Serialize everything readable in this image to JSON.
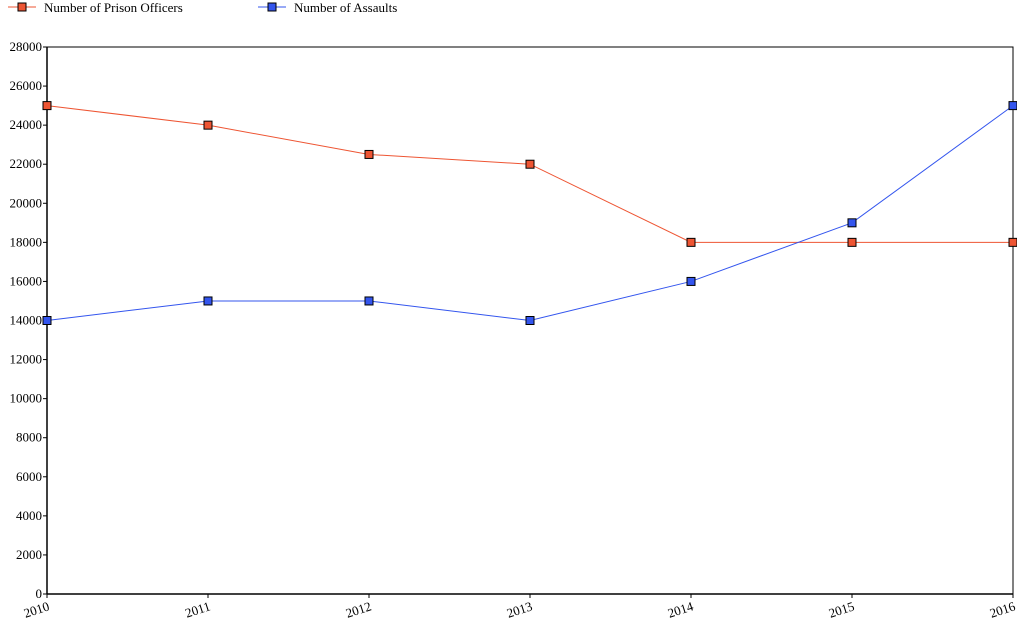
{
  "legend": {
    "items": [
      {
        "label": "Number of Prison Officers",
        "color": "#ee5533",
        "marker": "square"
      },
      {
        "label": "Number of Assaults",
        "color": "#3355ee",
        "marker": "square"
      }
    ]
  },
  "chart_data": {
    "type": "line",
    "title": "",
    "xlabel": "",
    "ylabel": "",
    "x": [
      "2010",
      "2011",
      "2012",
      "2013",
      "2014",
      "2015",
      "2016"
    ],
    "series": [
      {
        "name": "Number of Prison Officers",
        "color": "#ee5533",
        "values": [
          25000,
          24000,
          22500,
          22000,
          18000,
          18000,
          18000
        ]
      },
      {
        "name": "Number of Assaults",
        "color": "#3355ee",
        "values": [
          14000,
          15000,
          15000,
          14000,
          16000,
          19000,
          25000
        ]
      }
    ],
    "ylim": [
      0,
      28000
    ],
    "yticks": [
      "0",
      "2000",
      "4000",
      "6000",
      "8000",
      "10000",
      "12000",
      "14000",
      "16000",
      "18000",
      "20000",
      "22000",
      "24000",
      "26000",
      "28000"
    ],
    "grid": false,
    "legend_position": "top-left"
  }
}
